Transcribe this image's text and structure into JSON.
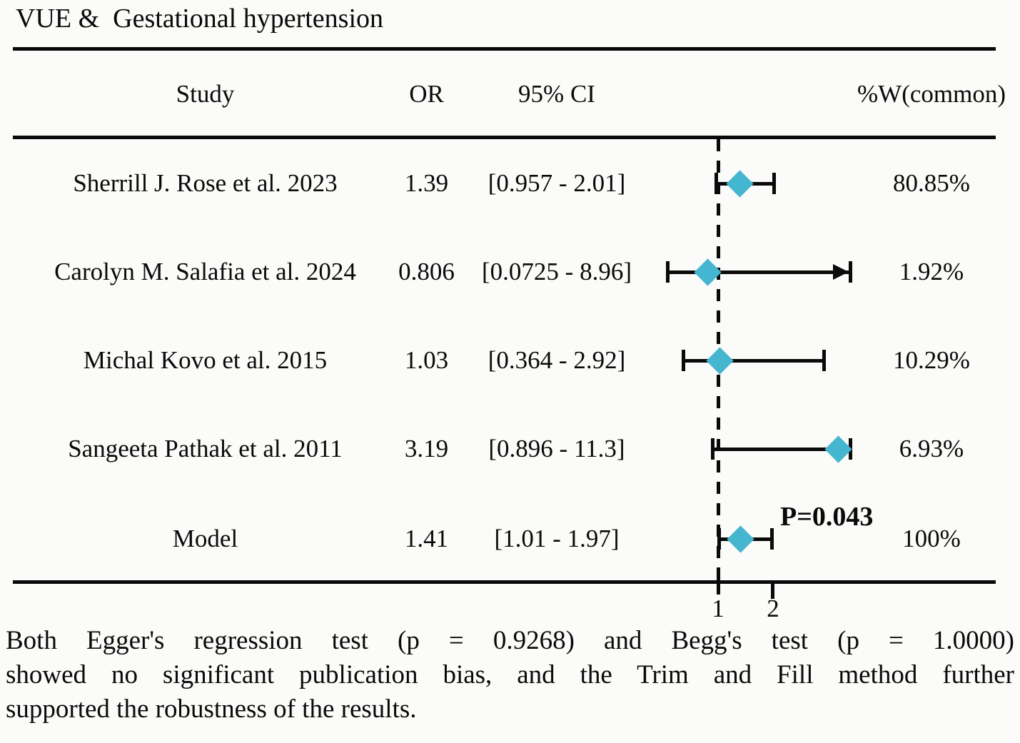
{
  "title": "VUE &  Gestational hypertension",
  "columns": {
    "study": "Study",
    "or": "OR",
    "ci": "95% CI",
    "weight": "%W(common)"
  },
  "axis": {
    "tick_labels": [
      "1",
      "2"
    ]
  },
  "annotation": {
    "p_value": "P=0.043"
  },
  "caption_lines": [
    "Both Egger's regression test (p = 0.9268) and Begg's test (p = 1.0000)",
    "showed no significant publication bias, and the Trim and Fill method further",
    "supported the robustness of the results."
  ],
  "colors": {
    "diamond": "#45b6d0",
    "line": "#0a0a0a"
  },
  "chart_data": {
    "type": "forest",
    "title": "VUE & Gestational hypertension",
    "x_scale": "linear",
    "x_ticks": [
      1,
      2
    ],
    "reference_line": 1,
    "x_clip_upper": 3.4,
    "effect_measure": "OR",
    "model_p_value": "P=0.043",
    "studies": [
      {
        "label": "Sherrill J. Rose et al. 2023",
        "or": 1.39,
        "ci_low": 0.957,
        "ci_high": 2.01,
        "or_text": "1.39",
        "ci_text": "[0.957 - 2.01]",
        "weight": "80.85%",
        "is_model": false
      },
      {
        "label": "Carolyn M. Salafia et al. 2024",
        "or": 0.806,
        "ci_low": 0.0725,
        "ci_high": 8.96,
        "or_text": "0.806",
        "ci_text": "[0.0725 - 8.96]",
        "weight": "1.92%",
        "is_model": false
      },
      {
        "label": "Michal Kovo et al. 2015",
        "or": 1.03,
        "ci_low": 0.364,
        "ci_high": 2.92,
        "or_text": "1.03",
        "ci_text": "[0.364 - 2.92]",
        "weight": "10.29%",
        "is_model": false
      },
      {
        "label": "Sangeeta Pathak et al. 2011",
        "or": 3.19,
        "ci_low": 0.896,
        "ci_high": 11.3,
        "or_text": "3.19",
        "ci_text": "[0.896 - 11.3]",
        "weight": "6.93%",
        "is_model": false
      },
      {
        "label": "Model",
        "or": 1.41,
        "ci_low": 1.01,
        "ci_high": 1.97,
        "or_text": "1.41",
        "ci_text": "[1.01 - 1.97]",
        "weight": "100%",
        "is_model": true,
        "p": "P=0.043"
      }
    ]
  }
}
